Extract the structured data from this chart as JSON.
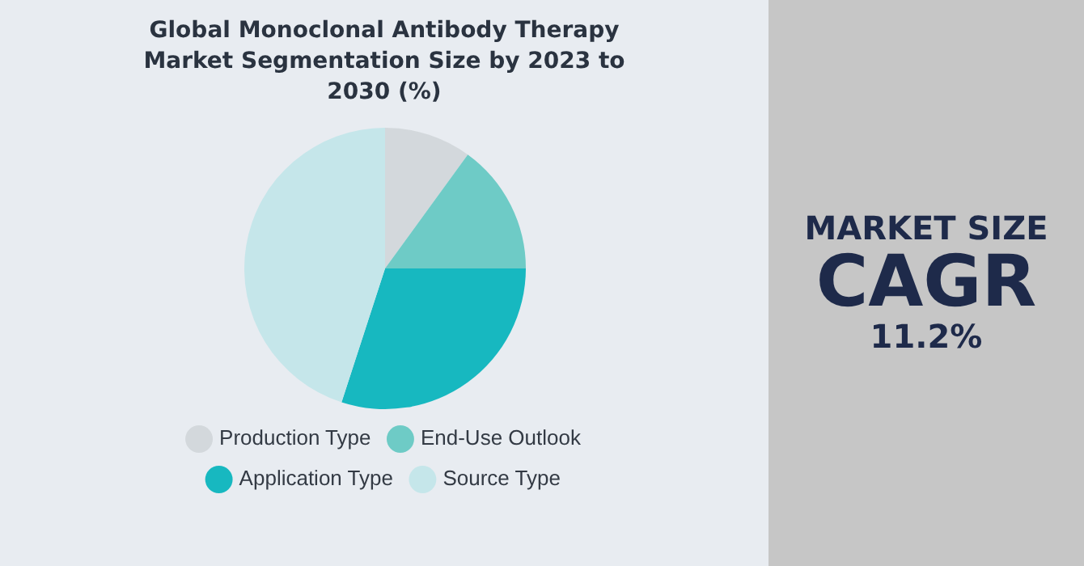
{
  "chart_data": {
    "type": "pie",
    "title": "Global Monoclonal Antibody Therapy Market Segmentation Size by 2023 to 2030 (%)",
    "categories": [
      "Production Type",
      "End-Use Outlook",
      "Application Type",
      "Source Type"
    ],
    "values": [
      10,
      15,
      30,
      45
    ],
    "colors": [
      "#d3d8dc",
      "#6ecbc6",
      "#17b8c0",
      "#c5e6ea"
    ],
    "legend": "bottom",
    "annotations": [
      "MARKET SIZE",
      "CAGR",
      "11.2%"
    ]
  }
}
